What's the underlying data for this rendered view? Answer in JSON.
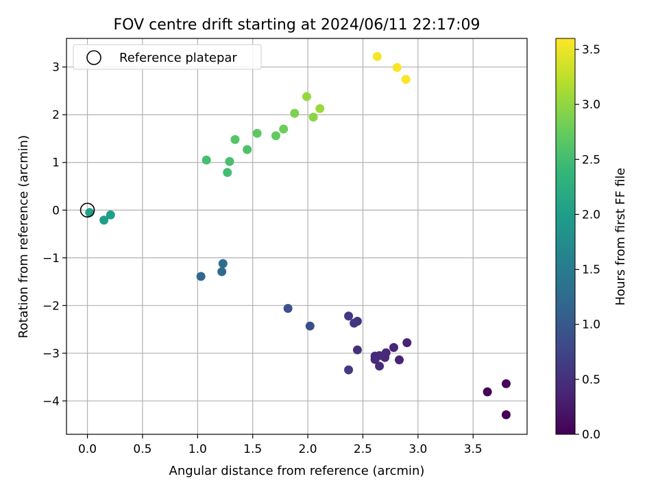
{
  "chart_data": {
    "type": "scatter",
    "title": "FOV centre drift starting at 2024/06/11 22:17:09",
    "xlabel": "Angular distance from reference (arcmin)",
    "ylabel": "Rotation from reference (arcmin)",
    "xlim": [
      -0.19,
      3.99
    ],
    "ylim": [
      -4.7,
      3.6
    ],
    "xticks": [
      0.0,
      0.5,
      1.0,
      1.5,
      2.0,
      2.5,
      3.0,
      3.5
    ],
    "xtick_labels": [
      "0.0",
      "0.5",
      "1.0",
      "1.5",
      "2.0",
      "2.5",
      "3.0",
      "3.5"
    ],
    "yticks": [
      -4,
      -3,
      -2,
      -1,
      0,
      1,
      2,
      3
    ],
    "ytick_labels": [
      "−4",
      "−3",
      "−2",
      "−1",
      "0",
      "1",
      "2",
      "3"
    ],
    "grid": true,
    "legend": {
      "position": "top-left",
      "entries": [
        "Reference platepar"
      ]
    },
    "reference_point": {
      "x": 0.0,
      "y": 0.0,
      "label": "Reference platepar"
    },
    "colorbar": {
      "label": "Hours from first FF file",
      "colormap": "viridis",
      "range": [
        0.0,
        3.6
      ],
      "ticks": [
        0.0,
        0.5,
        1.0,
        1.5,
        2.0,
        2.5,
        3.0,
        3.5
      ],
      "tick_labels": [
        "0.0",
        "0.5",
        "1.0",
        "1.5",
        "2.0",
        "2.5",
        "3.0",
        "3.5"
      ]
    },
    "points": [
      {
        "x": 3.8,
        "y": -4.29,
        "hours": 0.0
      },
      {
        "x": 3.63,
        "y": -3.81,
        "hours": 0.02
      },
      {
        "x": 3.8,
        "y": -3.64,
        "hours": 0.04
      },
      {
        "x": 2.9,
        "y": -2.78,
        "hours": 0.35
      },
      {
        "x": 2.83,
        "y": -3.14,
        "hours": 0.36
      },
      {
        "x": 2.78,
        "y": -2.88,
        "hours": 0.38
      },
      {
        "x": 2.71,
        "y": -2.99,
        "hours": 0.4
      },
      {
        "x": 2.7,
        "y": -3.09,
        "hours": 0.41
      },
      {
        "x": 2.65,
        "y": -3.05,
        "hours": 0.42
      },
      {
        "x": 2.61,
        "y": -3.06,
        "hours": 0.43
      },
      {
        "x": 2.61,
        "y": -3.13,
        "hours": 0.44
      },
      {
        "x": 2.65,
        "y": -3.27,
        "hours": 0.45
      },
      {
        "x": 2.45,
        "y": -2.93,
        "hours": 0.5
      },
      {
        "x": 2.45,
        "y": -2.33,
        "hours": 0.55
      },
      {
        "x": 2.42,
        "y": -2.37,
        "hours": 0.58
      },
      {
        "x": 2.37,
        "y": -2.22,
        "hours": 0.6
      },
      {
        "x": 2.37,
        "y": -3.35,
        "hours": 0.62
      },
      {
        "x": 2.02,
        "y": -2.43,
        "hours": 0.85
      },
      {
        "x": 1.82,
        "y": -2.06,
        "hours": 0.9
      },
      {
        "x": 1.03,
        "y": -1.39,
        "hours": 1.2
      },
      {
        "x": 1.22,
        "y": -1.29,
        "hours": 1.25
      },
      {
        "x": 1.23,
        "y": -1.12,
        "hours": 1.28
      },
      {
        "x": 0.15,
        "y": -0.21,
        "hours": 2.0
      },
      {
        "x": 0.21,
        "y": -0.1,
        "hours": 2.02
      },
      {
        "x": 0.02,
        "y": -0.05,
        "hours": 2.05
      },
      {
        "x": 1.27,
        "y": 0.79,
        "hours": 2.5
      },
      {
        "x": 1.08,
        "y": 1.05,
        "hours": 2.52
      },
      {
        "x": 1.29,
        "y": 1.02,
        "hours": 2.54
      },
      {
        "x": 1.45,
        "y": 1.27,
        "hours": 2.58
      },
      {
        "x": 1.34,
        "y": 1.48,
        "hours": 2.62
      },
      {
        "x": 1.54,
        "y": 1.61,
        "hours": 2.68
      },
      {
        "x": 1.71,
        "y": 1.56,
        "hours": 2.72
      },
      {
        "x": 1.78,
        "y": 1.7,
        "hours": 2.78
      },
      {
        "x": 1.88,
        "y": 2.03,
        "hours": 2.88
      },
      {
        "x": 2.05,
        "y": 1.95,
        "hours": 2.95
      },
      {
        "x": 1.99,
        "y": 2.38,
        "hours": 3.02
      },
      {
        "x": 2.11,
        "y": 2.13,
        "hours": 3.05
      },
      {
        "x": 2.63,
        "y": 3.22,
        "hours": 3.55
      },
      {
        "x": 2.81,
        "y": 2.99,
        "hours": 3.57
      },
      {
        "x": 2.89,
        "y": 2.74,
        "hours": 3.58
      }
    ]
  }
}
